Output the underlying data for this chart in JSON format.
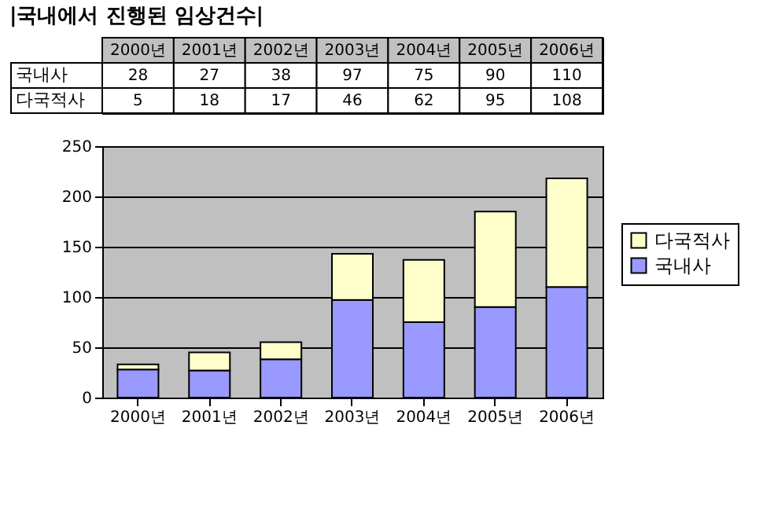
{
  "chart_data": {
    "type": "bar",
    "stacked": true,
    "title": "|국내에서 진행된 임상건수|",
    "categories": [
      "2000년",
      "2001년",
      "2002년",
      "2003년",
      "2004년",
      "2005년",
      "2006년"
    ],
    "series": [
      {
        "name": "국내사",
        "color": "#9999ff",
        "values": [
          28,
          27,
          38,
          97,
          75,
          90,
          110
        ]
      },
      {
        "name": "다국적사",
        "color": "#ffffcc",
        "values": [
          5,
          18,
          17,
          46,
          62,
          95,
          108
        ]
      }
    ],
    "ylim": [
      0,
      250
    ],
    "yticks": [
      0,
      50,
      100,
      150,
      200,
      250
    ],
    "grid": "y",
    "legend": "right",
    "data_labels": true
  }
}
